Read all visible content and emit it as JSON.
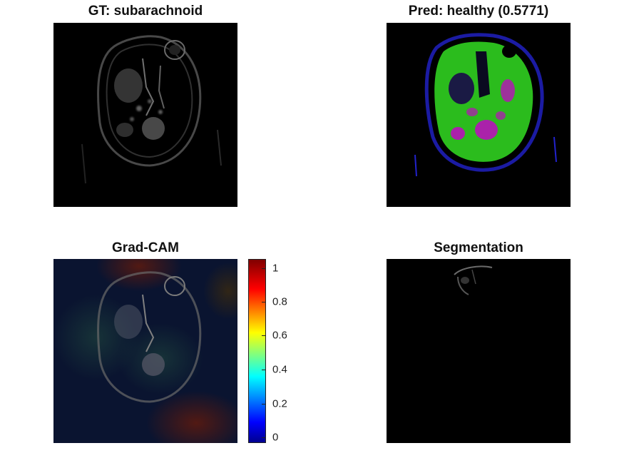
{
  "panels": {
    "gt": {
      "title": "GT: subarachnoid"
    },
    "pred": {
      "title": "Pred: healthy (0.5771)"
    },
    "gradcam": {
      "title": "Grad-CAM"
    },
    "segmentation": {
      "title": "Segmentation"
    }
  },
  "colorbar": {
    "colormap": "jet",
    "range": [
      0,
      1.05
    ],
    "ticks": [
      "0",
      "0.2",
      "0.4",
      "0.6",
      "0.8",
      "1"
    ]
  },
  "colors": {
    "background": "#000000",
    "segmentation_green": "#33dd22",
    "segmentation_magenta": "#aa22aa",
    "segmentation_blue": "#2222cc"
  }
}
